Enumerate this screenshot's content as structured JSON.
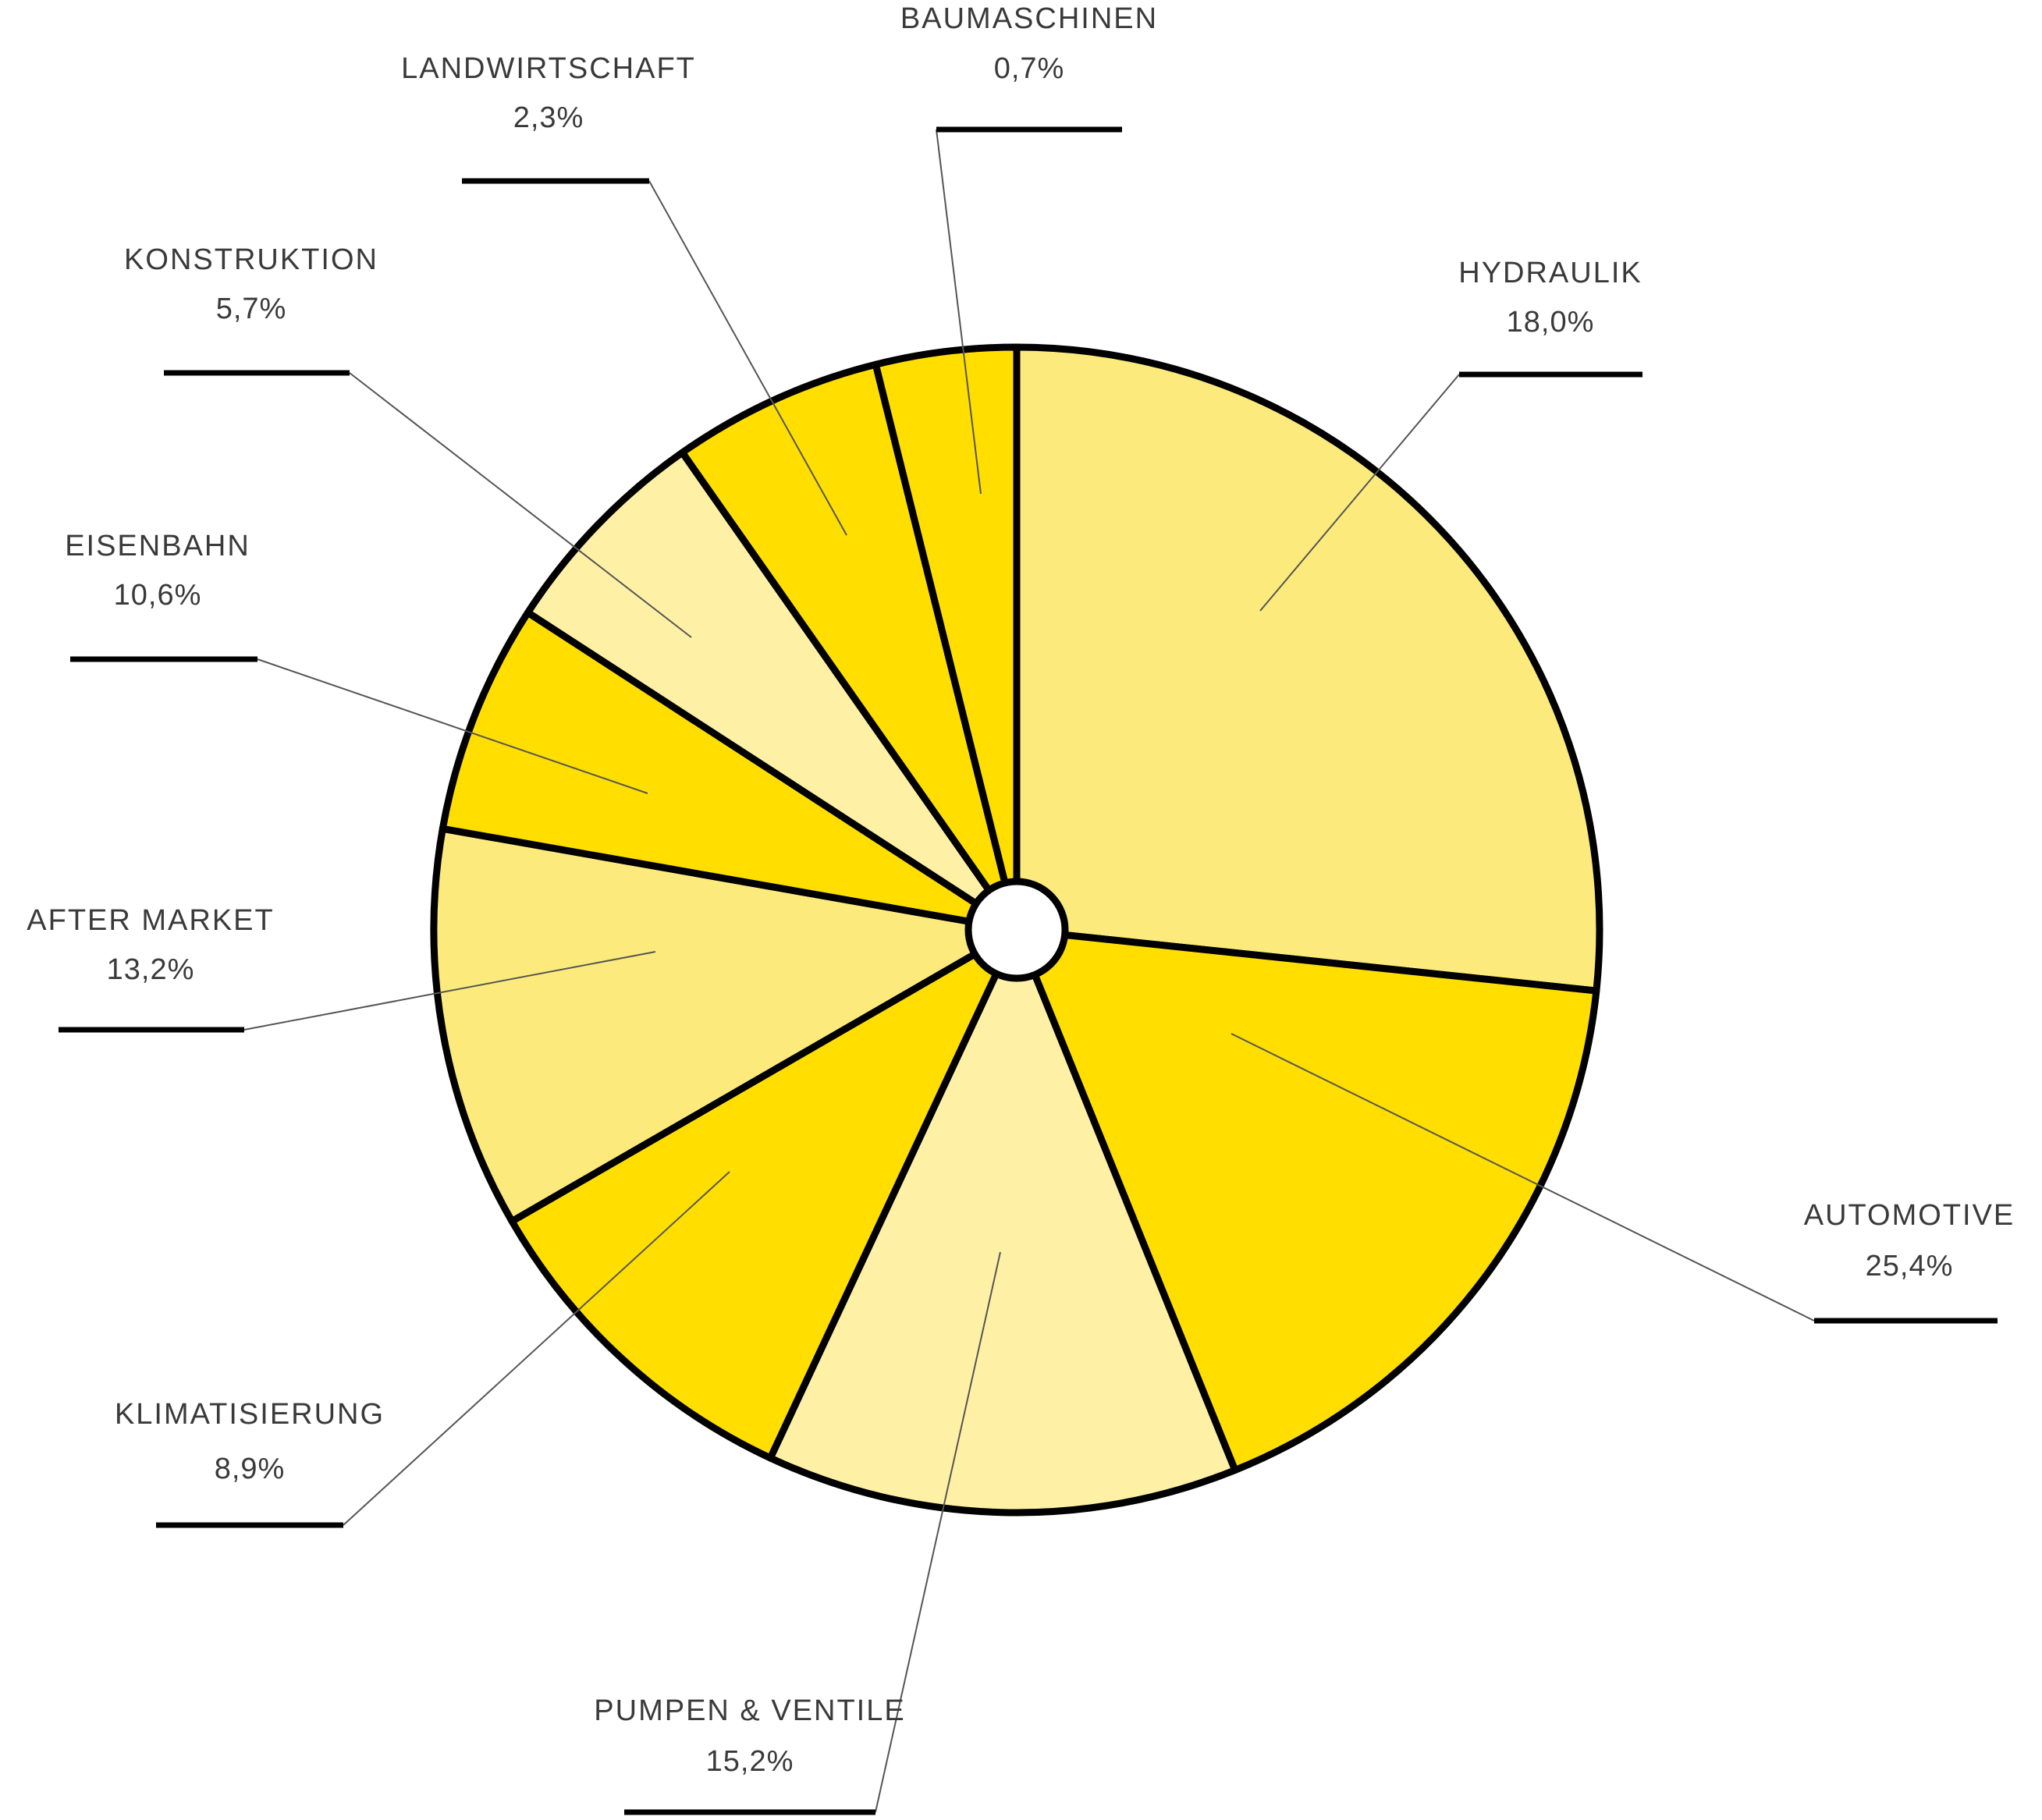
{
  "chart_data": {
    "type": "pie",
    "title": "",
    "inner_hole": true,
    "slices": [
      {
        "label": "HYDRAULIK",
        "value_label": "18,0%",
        "value": 18.0,
        "color": "#FCEB7C"
      },
      {
        "label": "AUTOMOTIVE",
        "value_label": "25,4%",
        "value": 25.4,
        "color": "#FFDE00"
      },
      {
        "label": "PUMPEN & VENTILE",
        "value_label": "15,2%",
        "value": 15.2,
        "color": "#FEF1A6"
      },
      {
        "label": "KLIMATISIERUNG",
        "value_label": "8,9%",
        "value": 8.9,
        "color": "#FFDE00"
      },
      {
        "label": "AFTER MARKET",
        "value_label": "13,2%",
        "value": 13.2,
        "color": "#FCEB7C"
      },
      {
        "label": "EISENBAHN",
        "value_label": "10,6%",
        "value": 10.6,
        "color": "#FFDE00"
      },
      {
        "label": "KONSTRUKTION",
        "value_label": "5,7%",
        "value": 5.7,
        "color": "#FEF1A6"
      },
      {
        "label": "LANDWIRTSCHAFT",
        "value_label": "2,3%",
        "value": 2.3,
        "color": "#FFDE00"
      },
      {
        "label": "BAUMASCHINEN",
        "value_label": "0,7%",
        "value": 0.7,
        "color": "#FFDE00"
      }
    ]
  }
}
